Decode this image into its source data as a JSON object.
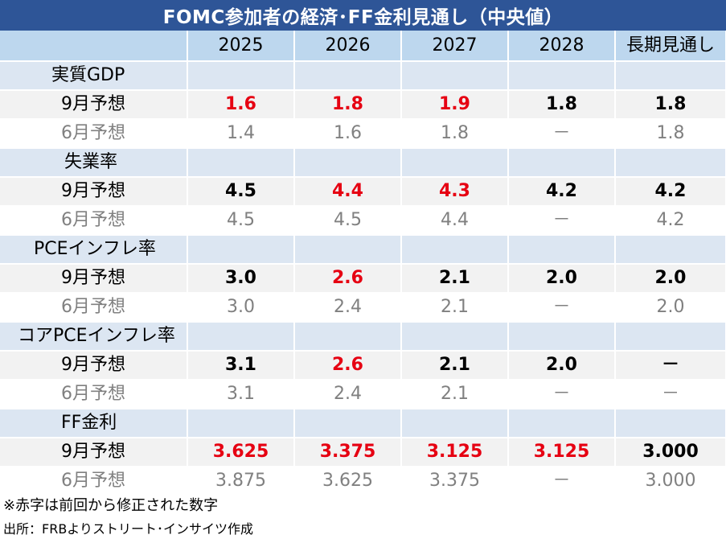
{
  "title": "FOMC参加者の経済･FF金利見通し（中央値）",
  "columns": [
    "2025",
    "2026",
    "2027",
    "2028",
    "長期見通し"
  ],
  "sections": [
    {
      "name": "実質GDP",
      "current_label": "9月予想",
      "previous_label": "6月予想",
      "current": [
        {
          "v": "1.6",
          "changed": true
        },
        {
          "v": "1.8",
          "changed": true
        },
        {
          "v": "1.9",
          "changed": true
        },
        {
          "v": "1.8",
          "changed": false
        },
        {
          "v": "1.8",
          "changed": false
        }
      ],
      "previous": [
        "1.4",
        "1.6",
        "1.8",
        "－",
        "1.8"
      ]
    },
    {
      "name": "失業率",
      "current_label": "9月予想",
      "previous_label": "6月予想",
      "current": [
        {
          "v": "4.5",
          "changed": false
        },
        {
          "v": "4.4",
          "changed": true
        },
        {
          "v": "4.3",
          "changed": true
        },
        {
          "v": "4.2",
          "changed": false
        },
        {
          "v": "4.2",
          "changed": false
        }
      ],
      "previous": [
        "4.5",
        "4.5",
        "4.4",
        "－",
        "4.2"
      ]
    },
    {
      "name": "PCEインフレ率",
      "current_label": "9月予想",
      "previous_label": "6月予想",
      "current": [
        {
          "v": "3.0",
          "changed": false
        },
        {
          "v": "2.6",
          "changed": true
        },
        {
          "v": "2.1",
          "changed": false
        },
        {
          "v": "2.0",
          "changed": false
        },
        {
          "v": "2.0",
          "changed": false
        }
      ],
      "previous": [
        "3.0",
        "2.4",
        "2.1",
        "－",
        "2.0"
      ]
    },
    {
      "name": "コアPCEインフレ率",
      "current_label": "9月予想",
      "previous_label": "6月予想",
      "current": [
        {
          "v": "3.1",
          "changed": false
        },
        {
          "v": "2.6",
          "changed": true
        },
        {
          "v": "2.1",
          "changed": false
        },
        {
          "v": "2.0",
          "changed": false
        },
        {
          "v": "－",
          "changed": false
        }
      ],
      "previous": [
        "3.1",
        "2.4",
        "2.1",
        "－",
        "－"
      ]
    },
    {
      "name": "FF金利",
      "current_label": "9月予想",
      "previous_label": "6月予想",
      "current": [
        {
          "v": "3.625",
          "changed": true
        },
        {
          "v": "3.375",
          "changed": true
        },
        {
          "v": "3.125",
          "changed": true
        },
        {
          "v": "3.125",
          "changed": true
        },
        {
          "v": "3.000",
          "changed": false
        }
      ],
      "previous": [
        "3.875",
        "3.625",
        "3.375",
        "－",
        "3.000"
      ]
    }
  ],
  "notes": {
    "red_note": "※赤字は前回から修正された数字",
    "source": "出所：FRBよりストリート･インサイツ作成"
  },
  "colors": {
    "title_bg": "#2e5597",
    "header_bg": "#bdd7ee",
    "section_bg": "#dce6f2",
    "current_row_bg": "#f2f2f2",
    "changed_text": "#e60012",
    "previous_text": "#808080"
  }
}
